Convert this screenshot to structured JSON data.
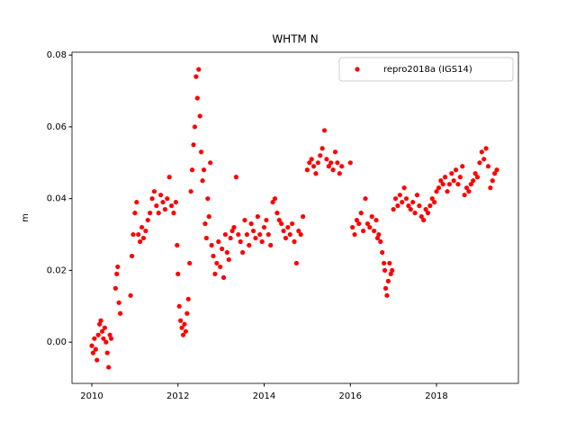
{
  "chart_data": {
    "type": "scatter",
    "title": "WHTM N",
    "y_label": "m",
    "legend_loc": "upper right",
    "xlim": [
      2009.54,
      2019.9
    ],
    "xticks": [
      2010,
      2012,
      2014,
      2016,
      2018
    ],
    "ylim": [
      -0.0115,
      0.0808
    ],
    "yticks": [
      {
        "value": 0.0,
        "label": "0.00"
      },
      {
        "value": 0.02,
        "label": "0.02"
      },
      {
        "value": 0.04,
        "label": "0.04"
      },
      {
        "value": 0.06,
        "label": "0.06"
      },
      {
        "value": 0.08,
        "label": "0.08"
      }
    ],
    "series": [
      {
        "name": "repro2018a (IGS14)",
        "color": "#ff0000",
        "x": [
          2010.0,
          2010.03,
          2010.06,
          2010.09,
          2010.12,
          2010.15,
          2010.18,
          2010.21,
          2010.24,
          2010.27,
          2010.3,
          2010.33,
          2010.36,
          2010.39,
          2010.42,
          2010.45,
          2010.55,
          2010.58,
          2010.6,
          2010.63,
          2010.66,
          2010.9,
          2010.93,
          2010.96,
          2011.0,
          2011.04,
          2011.08,
          2011.12,
          2011.16,
          2011.2,
          2011.25,
          2011.3,
          2011.35,
          2011.4,
          2011.45,
          2011.5,
          2011.55,
          2011.6,
          2011.65,
          2011.7,
          2011.75,
          2011.8,
          2011.85,
          2011.9,
          2011.95,
          2011.98,
          2012.0,
          2012.03,
          2012.06,
          2012.09,
          2012.12,
          2012.15,
          2012.18,
          2012.21,
          2012.24,
          2012.27,
          2012.3,
          2012.33,
          2012.36,
          2012.39,
          2012.42,
          2012.45,
          2012.48,
          2012.51,
          2012.54,
          2012.57,
          2012.6,
          2012.63,
          2012.66,
          2012.69,
          2012.72,
          2012.75,
          2012.78,
          2012.82,
          2012.86,
          2012.9,
          2012.94,
          2012.98,
          2013.02,
          2013.06,
          2013.1,
          2013.14,
          2013.18,
          2013.22,
          2013.26,
          2013.3,
          2013.35,
          2013.4,
          2013.45,
          2013.5,
          2013.55,
          2013.6,
          2013.65,
          2013.7,
          2013.75,
          2013.8,
          2013.85,
          2013.9,
          2013.95,
          2014.0,
          2014.05,
          2014.1,
          2014.15,
          2014.2,
          2014.25,
          2014.3,
          2014.35,
          2014.4,
          2014.45,
          2014.5,
          2014.55,
          2014.6,
          2014.65,
          2014.7,
          2014.75,
          2014.8,
          2014.85,
          2014.9,
          2015.0,
          2015.05,
          2015.1,
          2015.15,
          2015.2,
          2015.25,
          2015.3,
          2015.35,
          2015.4,
          2015.45,
          2015.5,
          2015.55,
          2015.6,
          2015.65,
          2015.7,
          2015.75,
          2015.8,
          2016.0,
          2016.05,
          2016.1,
          2016.15,
          2016.2,
          2016.25,
          2016.3,
          2016.35,
          2016.4,
          2016.45,
          2016.5,
          2016.55,
          2016.6,
          2016.63,
          2016.66,
          2016.7,
          2016.74,
          2016.78,
          2016.8,
          2016.82,
          2016.85,
          2016.88,
          2016.91,
          2016.94,
          2016.97,
          2017.0,
          2017.05,
          2017.1,
          2017.15,
          2017.2,
          2017.25,
          2017.3,
          2017.35,
          2017.4,
          2017.45,
          2017.5,
          2017.55,
          2017.6,
          2017.65,
          2017.7,
          2017.75,
          2017.8,
          2017.85,
          2017.9,
          2017.95,
          2018.0,
          2018.05,
          2018.1,
          2018.15,
          2018.2,
          2018.25,
          2018.3,
          2018.35,
          2018.4,
          2018.45,
          2018.5,
          2018.55,
          2018.6,
          2018.65,
          2018.7,
          2018.75,
          2018.8,
          2018.85,
          2018.9,
          2018.95,
          2019.0,
          2019.05,
          2019.1,
          2019.15,
          2019.2,
          2019.25,
          2019.3,
          2019.35,
          2019.4
        ],
        "values": [
          -0.001,
          -0.003,
          0.001,
          -0.002,
          -0.005,
          0.002,
          0.005,
          0.006,
          0.003,
          0.001,
          0.004,
          0.0,
          -0.003,
          -0.007,
          0.002,
          0.001,
          0.015,
          0.019,
          0.021,
          0.011,
          0.008,
          0.013,
          0.024,
          0.03,
          0.036,
          0.039,
          0.03,
          0.028,
          0.032,
          0.029,
          0.031,
          0.034,
          0.036,
          0.04,
          0.042,
          0.038,
          0.036,
          0.041,
          0.039,
          0.037,
          0.04,
          0.046,
          0.038,
          0.036,
          0.039,
          0.027,
          0.019,
          0.01,
          0.006,
          0.004,
          0.002,
          0.005,
          0.003,
          0.008,
          0.012,
          0.022,
          0.042,
          0.048,
          0.055,
          0.06,
          0.074,
          0.068,
          0.076,
          0.063,
          0.053,
          0.045,
          0.048,
          0.033,
          0.029,
          0.04,
          0.035,
          0.05,
          0.027,
          0.024,
          0.019,
          0.022,
          0.028,
          0.021,
          0.026,
          0.018,
          0.03,
          0.025,
          0.023,
          0.029,
          0.031,
          0.032,
          0.046,
          0.03,
          0.028,
          0.025,
          0.034,
          0.03,
          0.027,
          0.033,
          0.031,
          0.029,
          0.035,
          0.03,
          0.028,
          0.032,
          0.034,
          0.03,
          0.027,
          0.039,
          0.04,
          0.036,
          0.034,
          0.033,
          0.031,
          0.029,
          0.032,
          0.03,
          0.033,
          0.028,
          0.022,
          0.031,
          0.03,
          0.035,
          0.048,
          0.05,
          0.051,
          0.049,
          0.047,
          0.05,
          0.052,
          0.054,
          0.059,
          0.051,
          0.049,
          0.05,
          0.048,
          0.053,
          0.05,
          0.047,
          0.049,
          0.05,
          0.032,
          0.03,
          0.034,
          0.033,
          0.036,
          0.031,
          0.04,
          0.033,
          0.032,
          0.035,
          0.031,
          0.034,
          0.029,
          0.03,
          0.028,
          0.025,
          0.022,
          0.02,
          0.015,
          0.013,
          0.017,
          0.022,
          0.019,
          0.02,
          0.037,
          0.04,
          0.038,
          0.041,
          0.039,
          0.043,
          0.04,
          0.038,
          0.037,
          0.039,
          0.036,
          0.041,
          0.038,
          0.035,
          0.034,
          0.037,
          0.036,
          0.038,
          0.04,
          0.039,
          0.042,
          0.043,
          0.045,
          0.044,
          0.046,
          0.042,
          0.044,
          0.047,
          0.045,
          0.048,
          0.044,
          0.046,
          0.049,
          0.041,
          0.043,
          0.042,
          0.044,
          0.045,
          0.047,
          0.046,
          0.05,
          0.053,
          0.051,
          0.054,
          0.049,
          0.043,
          0.045,
          0.047,
          0.048
        ]
      }
    ]
  }
}
